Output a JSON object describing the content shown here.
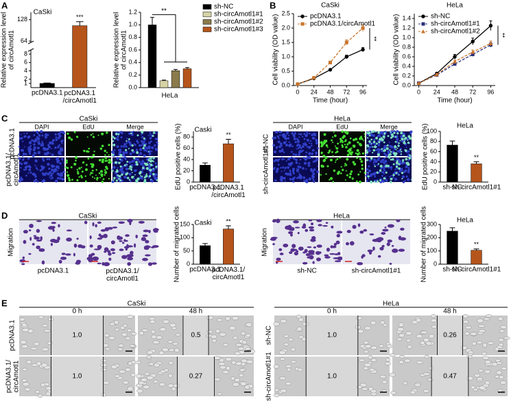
{
  "panels": [
    "A",
    "B",
    "C",
    "D",
    "E"
  ],
  "chart_data": [
    {
      "type": "bar",
      "title": "CaSki",
      "ylabel": "Relative expression level\nof circAmotl1",
      "categories": [
        "pcDNA3.1",
        "pcDNA3.1\n/circAmotl1"
      ],
      "values": [
        1,
        110
      ],
      "errors": [
        0.1,
        12
      ],
      "colors": [
        "#000000",
        "#b5541b"
      ],
      "ylim": [
        0,
        150
      ],
      "ybreak": [
        9,
        60
      ],
      "yticks": [
        1,
        2,
        4,
        6,
        8,
        64,
        128
      ],
      "annotations": [
        "***"
      ]
    },
    {
      "type": "bar",
      "ylabel": "Relative expression level\nof circAmotl1",
      "categories": [
        "HeLa"
      ],
      "series": [
        {
          "name": "sh-NC",
          "color": "#000000",
          "values": [
            1.0
          ],
          "errors": [
            0.12
          ]
        },
        {
          "name": "sh-circAmotl1#1",
          "color": "#d6d2a6",
          "values": [
            0.11
          ],
          "errors": [
            0.01
          ]
        },
        {
          "name": "sh-circAmotl1#2",
          "color": "#8a7a4c",
          "values": [
            0.27
          ],
          "errors": [
            0.02
          ]
        },
        {
          "name": "sh-circAmotl1#3",
          "color": "#b5541b",
          "values": [
            0.3
          ],
          "errors": [
            0.02
          ]
        }
      ],
      "ylim": [
        0,
        1.2
      ],
      "yticks": [
        {
          "value": 0,
          "label": "0.0"
        },
        0.2,
        0.4,
        0.6,
        0.8,
        {
          "value": 1,
          "label": "1.0"
        },
        1.2
      ],
      "annotations": [
        "**"
      ]
    },
    {
      "type": "line",
      "title": "CaSki",
      "xlabel": "Time (hour)",
      "ylabel": "Cell viability (OD value)",
      "x": [
        0,
        24,
        48,
        72,
        96
      ],
      "xlim": [
        -6,
        102
      ],
      "xticks": [
        0,
        24,
        48,
        72,
        96
      ],
      "series": [
        {
          "name": "pcDNA3.1",
          "color": "#000000",
          "marker": "circle",
          "dashed": false,
          "values": [
            0.05,
            0.25,
            0.55,
            1.0,
            1.25
          ],
          "errors": [
            0.01,
            0.02,
            0.03,
            0.06,
            0.07
          ]
        },
        {
          "name": "pcDNA3.1/circAmotl1",
          "color": "#c8742c",
          "marker": "square",
          "dashed": true,
          "values": [
            0.05,
            0.27,
            0.8,
            1.5,
            2.0
          ],
          "errors": [
            0.01,
            0.02,
            0.05,
            0.09,
            0.12
          ]
        }
      ],
      "ylim": [
        0,
        2.5
      ],
      "yticks": [
        {
          "value": 0,
          "label": "0.0"
        },
        0.5,
        {
          "value": 1,
          "label": "1.0"
        },
        1.5,
        {
          "value": 2,
          "label": "2.0"
        },
        2.5
      ],
      "annotations": [
        "**"
      ]
    },
    {
      "type": "line",
      "title": "HeLa",
      "xlabel": "Time (hour)",
      "ylabel": "Cell viability (OD value)",
      "x": [
        0,
        24,
        48,
        72,
        96
      ],
      "xlim": [
        -6,
        102
      ],
      "xticks": [
        0,
        24,
        48,
        72,
        96
      ],
      "series": [
        {
          "name": "sh-NC",
          "color": "#000000",
          "marker": "circle",
          "dashed": false,
          "values": [
            0.05,
            0.25,
            0.6,
            0.92,
            1.25
          ],
          "errors": [
            0.01,
            0.02,
            0.05,
            0.07,
            0.1
          ]
        },
        {
          "name": "sh-circAmotl1#1",
          "color": "#2b2f7a",
          "marker": "square",
          "dashed": true,
          "values": [
            0.05,
            0.22,
            0.45,
            0.65,
            0.85
          ],
          "errors": [
            0.01,
            0.02,
            0.03,
            0.04,
            0.05
          ]
        },
        {
          "name": "sh-circAmotl1#2",
          "color": "#c8742c",
          "marker": "triangle",
          "dashed": true,
          "values": [
            0.05,
            0.23,
            0.5,
            0.7,
            0.88
          ],
          "errors": [
            0.01,
            0.02,
            0.03,
            0.04,
            0.05
          ]
        }
      ],
      "ylim": [
        0,
        1.5
      ],
      "yticks": [
        {
          "value": 0,
          "label": "0.0"
        },
        0.2,
        0.4,
        0.6,
        0.8,
        {
          "value": 1,
          "label": "1.0"
        },
        1.2,
        1.4
      ],
      "annotations": [
        "**"
      ]
    },
    {
      "type": "bar",
      "title": "Caski",
      "ylabel": "EdU positive cells (%)",
      "categories": [
        "pcDNA3.1",
        "pcDNA3.1\n/circAmotl1"
      ],
      "values": [
        30,
        68
      ],
      "errors": [
        4,
        8
      ],
      "colors": [
        "#000000",
        "#b5541b"
      ],
      "ylim": [
        0,
        90
      ],
      "yticks": [
        0,
        20,
        40,
        60,
        80
      ],
      "annotations": [
        "**"
      ]
    },
    {
      "type": "bar",
      "title": "HeLa",
      "ylabel": "EdU positive cells (%)",
      "categories": [
        "sh-NC",
        "sh-circAmotl1#1"
      ],
      "values": [
        73,
        36
      ],
      "errors": [
        8,
        4
      ],
      "colors": [
        "#000000",
        "#b5541b"
      ],
      "ylim": [
        0,
        100
      ],
      "yticks": [
        0,
        20,
        40,
        60,
        80,
        100
      ],
      "annotations": [
        "**"
      ]
    },
    {
      "type": "bar",
      "title": "Caski",
      "ylabel": "Number of migrated cells",
      "categories": [
        "pcDNA3.1",
        "pcDNA3.1/\ncircAmotl1"
      ],
      "values": [
        70,
        133
      ],
      "errors": [
        8,
        12
      ],
      "colors": [
        "#000000",
        "#b5541b"
      ],
      "ylim": [
        0,
        150
      ],
      "yticks": [
        0,
        50,
        100,
        150
      ],
      "annotations": [
        "**"
      ]
    },
    {
      "type": "bar",
      "title": "HeLa",
      "ylabel": "Number of migrated cells",
      "categories": [
        "sh-NC",
        "sh-circAmotl1#1"
      ],
      "values": [
        250,
        105
      ],
      "errors": [
        25,
        10
      ],
      "colors": [
        "#000000",
        "#b5541b"
      ],
      "ylim": [
        0,
        300
      ],
      "yticks": [
        0,
        100,
        200,
        300
      ],
      "annotations": [
        "**"
      ]
    }
  ],
  "panel_c": {
    "caski": {
      "title": "CaSki",
      "columns": [
        "DAPI",
        "EdU",
        "Merge"
      ],
      "rows": [
        "pcDNA3.1",
        "pcDNA3.1/\ncircAmotl1"
      ]
    },
    "hela": {
      "title": "HeLa",
      "columns": [
        "DAPI",
        "EdU",
        "Merge"
      ],
      "rows": [
        "sh-NC",
        "sh-circAmotl1#1"
      ]
    }
  },
  "panel_d": {
    "caski": {
      "title": "CaSki",
      "ylabel": "Migration",
      "labels": [
        "pcDNA3.1",
        "pcDNA3.1/\ncircAmotl1"
      ]
    },
    "hela": {
      "title": "HeLa",
      "ylabel": "Migration",
      "labels": [
        "sh-NC",
        "sh-circAmotl1#1"
      ]
    }
  },
  "panel_e": {
    "caski": {
      "title": "CaSki",
      "columns": [
        "0 h",
        "48 h"
      ],
      "rows": [
        "pcDNA3.1",
        "pcDNA3.1/\ncircAmotl1"
      ],
      "wound_widths": [
        [
          "1.0",
          "0.5"
        ],
        [
          "1.0",
          "0.27"
        ]
      ]
    },
    "hela": {
      "title": "HeLa",
      "columns": [
        "0 h",
        "48 h"
      ],
      "rows": [
        "sh-NC",
        "sh-circAmotl1#1"
      ],
      "wound_widths": [
        [
          "1.0",
          "0.26"
        ],
        [
          "1.0",
          "0.47"
        ]
      ]
    }
  }
}
